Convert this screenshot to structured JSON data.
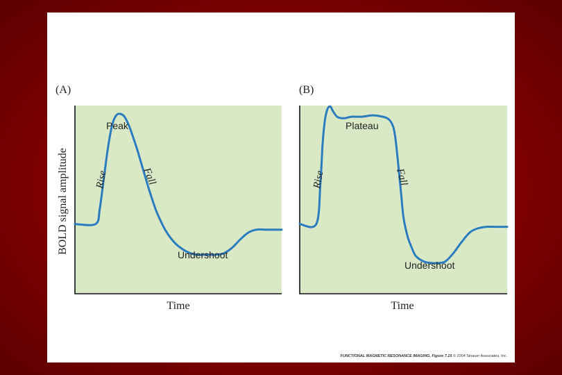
{
  "chart_data": [
    {
      "type": "line",
      "panel": "(A)",
      "xlabel": "Time",
      "ylabel": "BOLD signal amplitude",
      "grid": false,
      "annotations": {
        "rise": "Rise",
        "peak": "Peak",
        "fall": "Fall",
        "undershoot": "Undershoot"
      },
      "x": [
        0,
        10,
        12,
        14,
        16,
        18,
        20,
        22,
        24,
        26,
        28,
        30,
        32,
        34,
        36,
        38,
        40,
        44,
        48,
        52,
        56,
        60,
        64,
        68,
        72,
        76,
        80,
        84,
        88,
        92,
        96,
        100
      ],
      "y": [
        0.15,
        0.15,
        0.26,
        0.48,
        0.7,
        0.86,
        0.93,
        0.94,
        0.92,
        0.86,
        0.78,
        0.69,
        0.59,
        0.49,
        0.39,
        0.3,
        0.22,
        0.1,
        0.02,
        -0.03,
        -0.06,
        -0.07,
        -0.07,
        -0.07,
        -0.06,
        -0.02,
        0.04,
        0.09,
        0.11,
        0.11,
        0.11,
        0.11
      ],
      "xlim": [
        0,
        100
      ],
      "ylim": [
        -0.35,
        1.0
      ]
    },
    {
      "type": "line",
      "panel": "(B)",
      "xlabel": "Time",
      "ylabel": "",
      "grid": false,
      "annotations": {
        "rise": "Rise",
        "plateau": "Plateau",
        "fall": "Fall",
        "undershoot": "Undershoot"
      },
      "x": [
        0,
        8,
        10,
        11,
        12,
        13,
        14,
        15,
        16,
        18,
        20,
        22,
        25,
        30,
        35,
        40,
        43,
        45,
        46,
        47,
        48,
        49,
        50,
        52,
        54,
        56,
        60,
        64,
        66,
        70,
        74,
        78,
        82,
        86,
        90,
        94,
        100
      ],
      "y": [
        0.15,
        0.15,
        0.45,
        0.72,
        0.88,
        0.96,
        0.99,
        0.99,
        0.96,
        0.92,
        0.91,
        0.91,
        0.92,
        0.92,
        0.93,
        0.92,
        0.9,
        0.85,
        0.78,
        0.65,
        0.5,
        0.35,
        0.2,
        0.06,
        -0.02,
        -0.08,
        -0.12,
        -0.13,
        -0.13,
        -0.12,
        -0.06,
        0.02,
        0.09,
        0.12,
        0.13,
        0.13,
        0.13
      ],
      "xlim": [
        0,
        100
      ],
      "ylim": [
        -0.35,
        1.0
      ]
    }
  ],
  "credit": {
    "title": "FUNCTIONAL MAGNETIC RESONANCE IMAGING, Figure 7.15",
    "rest": " © 2004 Sinauer Associates, Inc."
  },
  "colors": {
    "curve": "#2b7bbf",
    "plot_bg": "#d9e9c6",
    "slide_bg": "#a40000"
  }
}
